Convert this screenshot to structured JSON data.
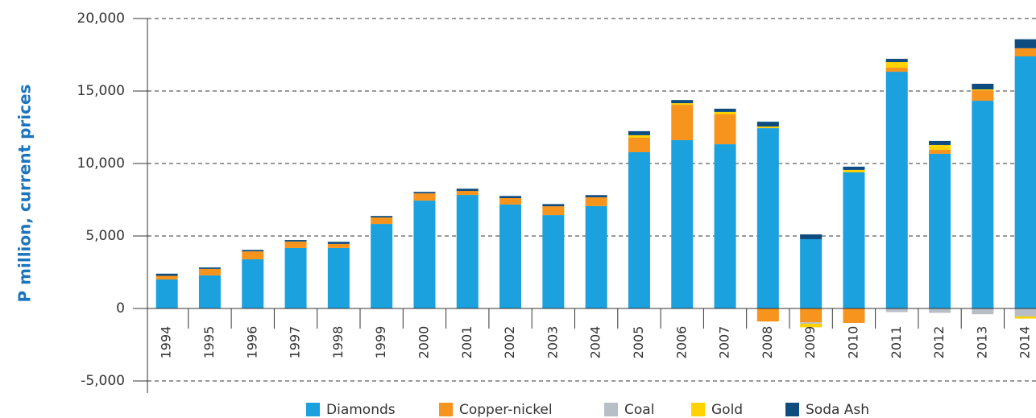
{
  "chart_data": {
    "type": "stacked_bar",
    "y_label": "P million, current prices",
    "categories": [
      "1994",
      "1995",
      "1996",
      "1997",
      "1998",
      "1999",
      "2000",
      "2001",
      "2002",
      "2003",
      "2004",
      "2005",
      "2006",
      "2007",
      "2008",
      "2009",
      "2010",
      "2011",
      "2012",
      "2013",
      "2014"
    ],
    "series": [
      {
        "name": "Diamonds",
        "color": "#1ba1dd",
        "values": [
          2000,
          2280,
          3390,
          4170,
          4170,
          5830,
          7440,
          7830,
          7170,
          6440,
          7060,
          10780,
          11610,
          11330,
          12440,
          4780,
          9390,
          16330,
          10670,
          14330,
          17390
        ]
      },
      {
        "name": "Copper-nickel",
        "color": "#f7941d",
        "values": [
          250,
          450,
          550,
          450,
          280,
          450,
          500,
          280,
          440,
          610,
          610,
          1000,
          2440,
          2060,
          -900,
          -950,
          -1000,
          280,
          280,
          720,
          560
        ]
      },
      {
        "name": "Coal",
        "color": "#b7bec5",
        "values": [
          0,
          0,
          0,
          0,
          0,
          0,
          0,
          0,
          0,
          0,
          0,
          0,
          0,
          0,
          0,
          -100,
          0,
          -250,
          -300,
          -400,
          -550
        ]
      },
      {
        "name": "Gold",
        "color": "#ffd200",
        "values": [
          0,
          0,
          0,
          0,
          0,
          0,
          0,
          0,
          0,
          0,
          0,
          170,
          110,
          170,
          110,
          -250,
          170,
          390,
          330,
          60,
          -150
        ]
      },
      {
        "name": "Soda Ash",
        "color": "#0e4c80",
        "values": [
          150,
          100,
          100,
          100,
          150,
          100,
          100,
          150,
          150,
          150,
          150,
          280,
          220,
          220,
          330,
          330,
          220,
          220,
          280,
          390,
          620
        ]
      }
    ],
    "ylim": [
      -5000,
      20000
    ],
    "yticks": [
      {
        "value": -5000,
        "label": "-5,000"
      },
      0,
      {
        "value": 5000,
        "label": "5,000"
      },
      {
        "value": 10000,
        "label": "10,000"
      },
      {
        "value": 15000,
        "label": "15,000"
      },
      {
        "value": 20000,
        "label": "20,000"
      }
    ],
    "grid": true
  }
}
